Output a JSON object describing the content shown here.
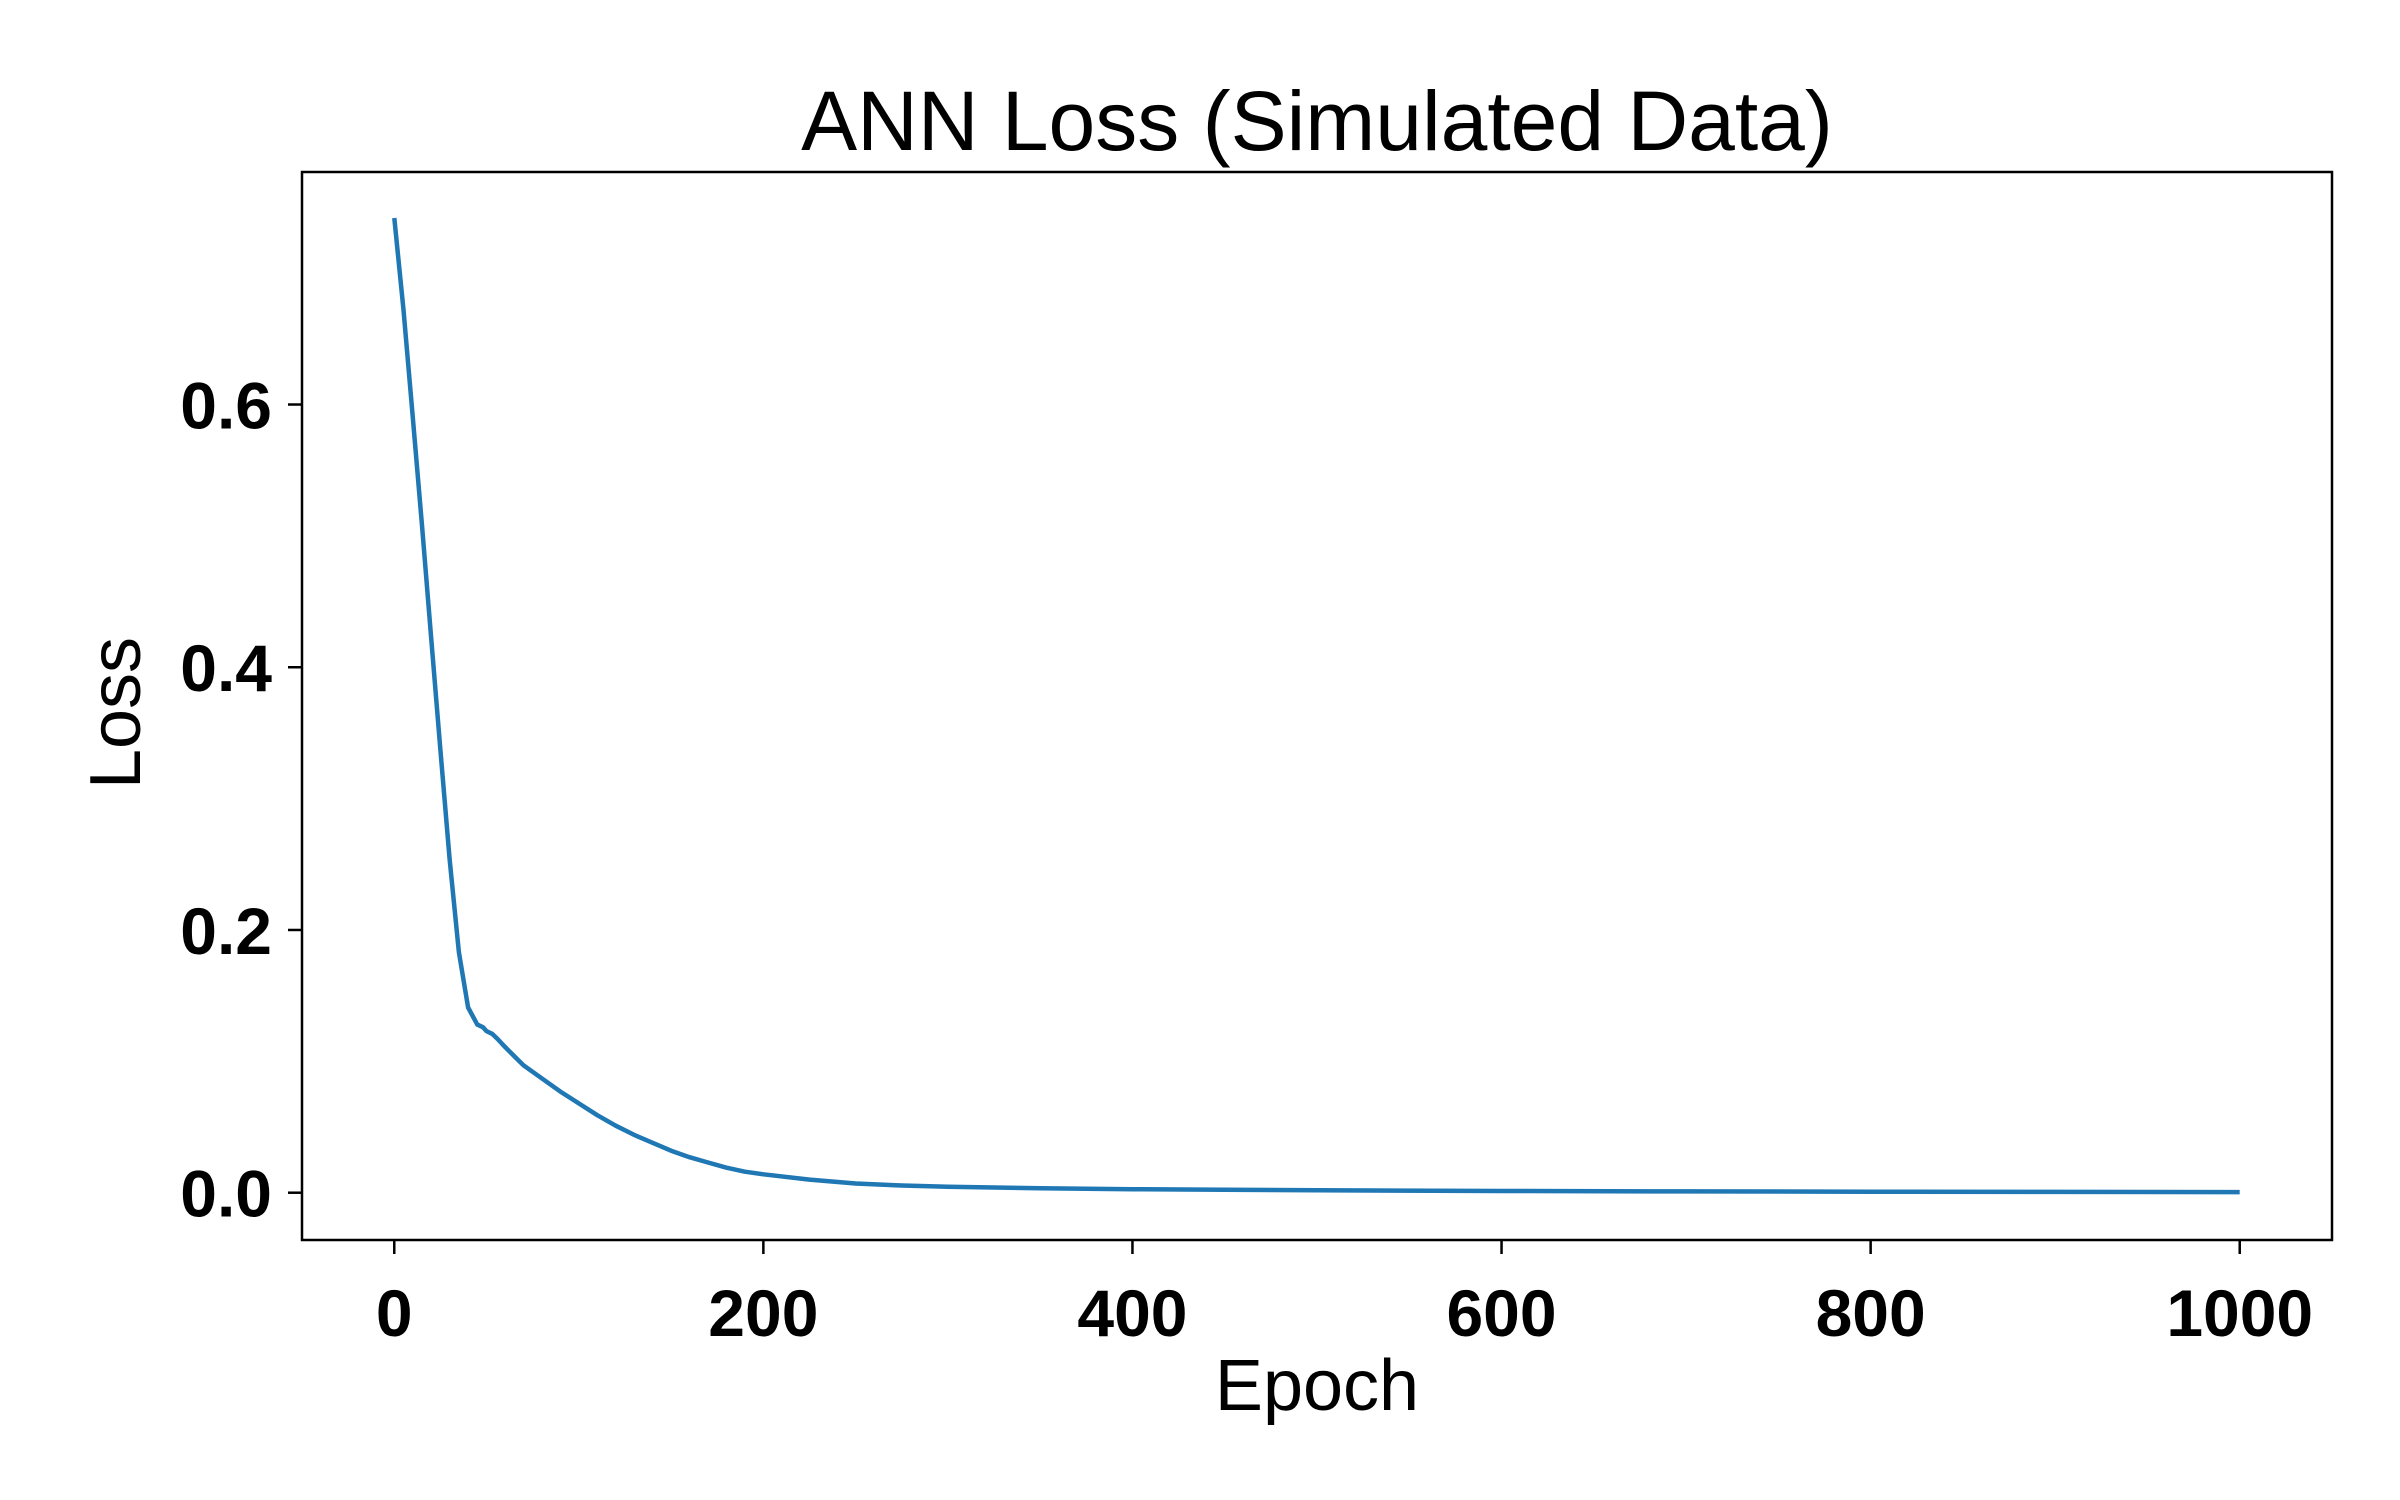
{
  "chart_data": {
    "type": "line",
    "title": "ANN Loss (Simulated Data)",
    "xlabel": "Epoch",
    "ylabel": "Loss",
    "xlim": [
      -50,
      1050
    ],
    "ylim": [
      -0.036,
      0.777
    ],
    "xticks": [
      0,
      200,
      400,
      600,
      800,
      1000
    ],
    "xtick_labels": [
      "0",
      "200",
      "400",
      "600",
      "800",
      "1000"
    ],
    "yticks": [
      0.0,
      0.2,
      0.4,
      0.6
    ],
    "ytick_labels": [
      "0.0",
      "0.2",
      "0.4",
      "0.6"
    ],
    "grid": false,
    "line_color": "#1f77b4",
    "series": [
      {
        "x": [
          0,
          5,
          10,
          15,
          20,
          25,
          30,
          35,
          40,
          45,
          48,
          50,
          53,
          56,
          60,
          65,
          70,
          80,
          90,
          100,
          110,
          120,
          130,
          140,
          150,
          160,
          170,
          180,
          190,
          200,
          225,
          250,
          275,
          300,
          350,
          400,
          450,
          500,
          600,
          700,
          800,
          900,
          1000
        ],
        "y": [
          0.742,
          0.672,
          0.591,
          0.508,
          0.422,
          0.337,
          0.254,
          0.183,
          0.141,
          0.128,
          0.126,
          0.123,
          0.121,
          0.117,
          0.111,
          0.104,
          0.097,
          0.087,
          0.077,
          0.068,
          0.059,
          0.051,
          0.044,
          0.038,
          0.032,
          0.027,
          0.023,
          0.019,
          0.016,
          0.014,
          0.01,
          0.007,
          0.0055,
          0.0045,
          0.0034,
          0.0027,
          0.0022,
          0.0018,
          0.0013,
          0.001,
          0.0008,
          0.0006,
          0.0005
        ]
      }
    ]
  }
}
